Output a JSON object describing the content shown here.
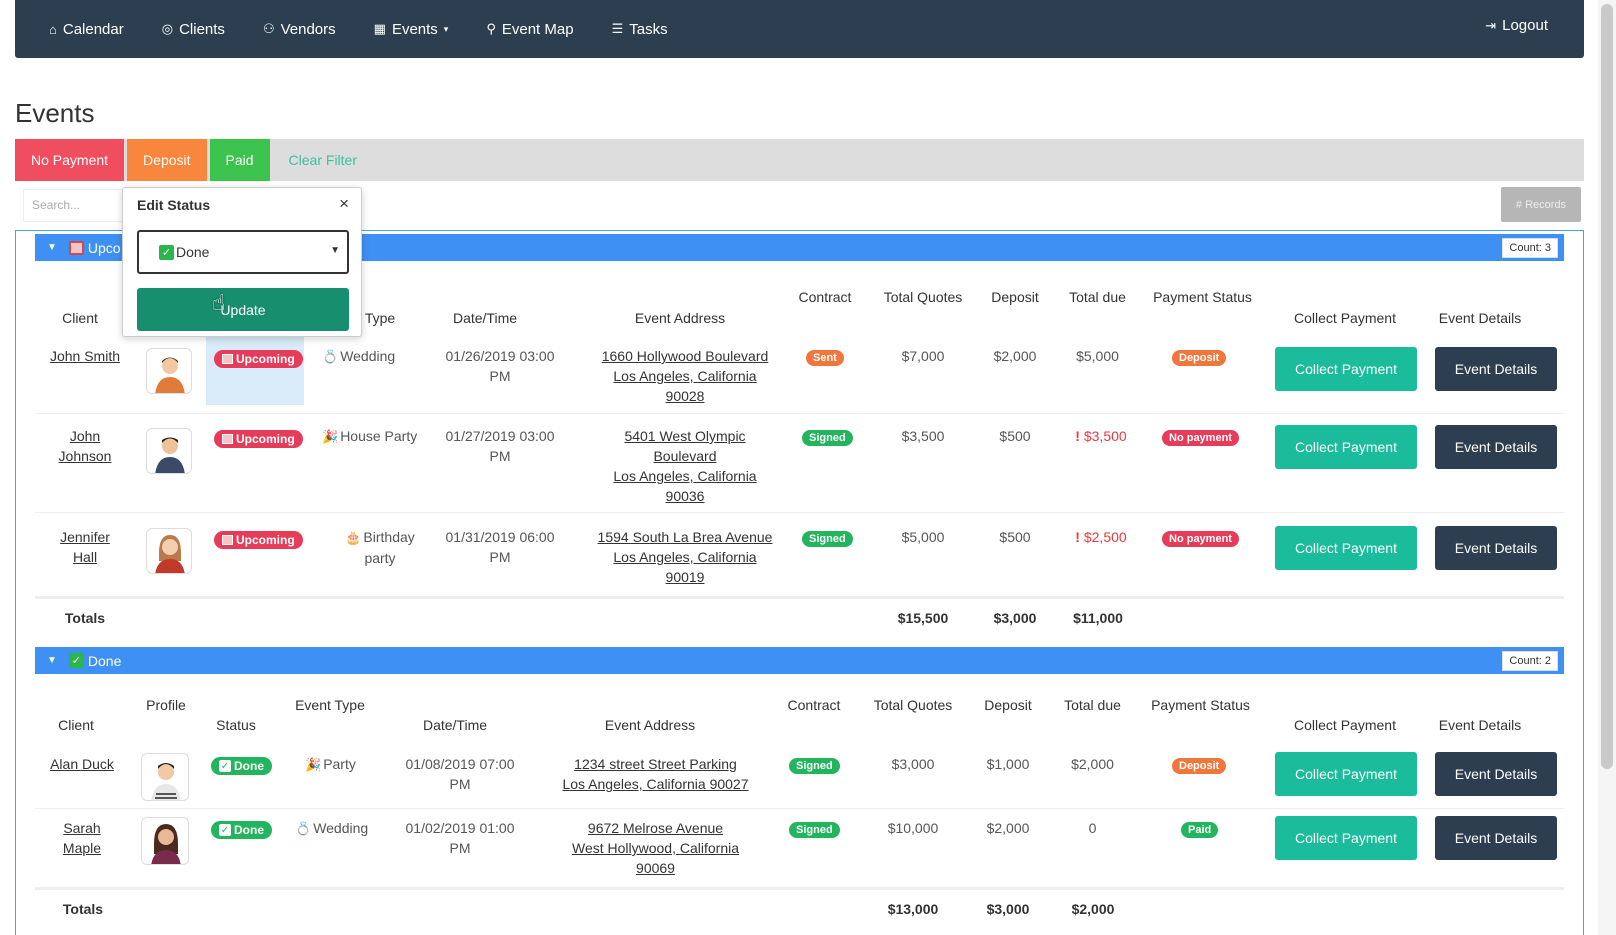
{
  "nav": {
    "items": [
      {
        "label": "Calendar",
        "icon": "home-icon"
      },
      {
        "label": "Clients",
        "icon": "user-circle-icon"
      },
      {
        "label": "Vendors",
        "icon": "users-icon"
      },
      {
        "label": "Events",
        "icon": "calendar-icon"
      },
      {
        "label": "Event Map",
        "icon": "map-pin-icon"
      },
      {
        "label": "Tasks",
        "icon": "list-icon"
      }
    ],
    "logout": "Logout"
  },
  "page": {
    "title": "Events"
  },
  "filters": {
    "no_payment": "No Payment",
    "deposit": "Deposit",
    "paid": "Paid",
    "clear": "Clear Filter"
  },
  "search": {
    "placeholder": "Search..."
  },
  "records_label": "# Records",
  "popover": {
    "title": "Edit Status",
    "close": "×",
    "selected": "Done",
    "update": "Update"
  },
  "upcoming": {
    "label": "Upco",
    "count": "Count: 3",
    "headers": {
      "client": "Client",
      "type": "Type",
      "datetime": "Date/Time",
      "address": "Event Address",
      "contract": "Contract",
      "total_quotes": "Total Quotes",
      "deposit": "Deposit",
      "total_due": "Total due",
      "payment_status": "Payment Status",
      "collect": "Collect Payment",
      "details": "Event Details"
    },
    "rows": [
      {
        "client1": "John Smith",
        "client2": "",
        "status": "Upcoming",
        "type": "Wedding",
        "dt1": "01/26/2019 03:00",
        "dt2": "PM",
        "addr1": "1660 Hollywood Boulevard",
        "addr2": "Los Angeles, California",
        "addr3": "90028",
        "addr4": "",
        "contract": "Sent",
        "quotes": "$7,000",
        "deposit": "$2,000",
        "due": "$5,000",
        "payment": "Deposit",
        "collect": "Collect Payment",
        "details": "Event Details"
      },
      {
        "client1": "John",
        "client2": "Johnson",
        "status": "Upcoming",
        "type": "House Party",
        "dt1": "01/27/2019 03:00",
        "dt2": "PM",
        "addr1": "5401 West Olympic",
        "addr2": "Boulevard",
        "addr3": "Los Angeles, California",
        "addr4": "90036",
        "contract": "Signed",
        "quotes": "$3,500",
        "deposit": "$500",
        "due": "$3,500",
        "payment": "No payment",
        "collect": "Collect Payment",
        "details": "Event Details"
      },
      {
        "client1": "Jennifer",
        "client2": "Hall",
        "status": "Upcoming",
        "type": "Birthday",
        "type2": "party",
        "dt1": "01/31/2019 06:00",
        "dt2": "PM",
        "addr1": "1594 South La Brea Avenue",
        "addr2": "Los Angeles, California",
        "addr3": "90019",
        "addr4": "",
        "contract": "Signed",
        "quotes": "$5,000",
        "deposit": "$500",
        "due": "$2,500",
        "payment": "No payment",
        "collect": "Collect Payment",
        "details": "Event Details"
      }
    ],
    "totals": {
      "label": "Totals",
      "quotes": "$15,500",
      "deposit": "$3,000",
      "due": "$11,000"
    }
  },
  "done": {
    "label": "Done",
    "count": "Count: 2",
    "headers": {
      "client": "Client",
      "profile": "Profile",
      "status": "Status",
      "type": "Event Type",
      "datetime": "Date/Time",
      "address": "Event Address",
      "contract": "Contract",
      "total_quotes": "Total Quotes",
      "deposit": "Deposit",
      "total_due": "Total due",
      "payment_status": "Payment Status",
      "collect": "Collect Payment",
      "details": "Event Details"
    },
    "rows": [
      {
        "client1": "Alan Duck",
        "client2": "",
        "status": "Done",
        "type": "Party",
        "dt1": "01/08/2019 07:00",
        "dt2": "PM",
        "addr1": "1234 street Street Parking",
        "addr2": "Los Angeles, California 90027",
        "addr3": "",
        "contract": "Signed",
        "quotes": "$3,000",
        "deposit": "$1,000",
        "due": "$2,000",
        "payment": "Deposit",
        "collect": "Collect Payment",
        "details": "Event Details"
      },
      {
        "client1": "Sarah",
        "client2": "Maple",
        "status": "Done",
        "type": "Wedding",
        "dt1": "01/02/2019 01:00",
        "dt2": "PM",
        "addr1": "9672 Melrose Avenue",
        "addr2": "West Hollywood, California",
        "addr3": "90069",
        "contract": "Signed",
        "quotes": "$10,000",
        "deposit": "$2,000",
        "due": "0",
        "payment": "Paid",
        "collect": "Collect Payment",
        "details": "Event Details"
      }
    ],
    "totals": {
      "label": "Totals",
      "quotes": "$13,000",
      "deposit": "$3,000",
      "due": "$2,000"
    }
  },
  "colors": {
    "nav": "#2c3e50",
    "group_bar": "#3f90f4",
    "collect": "#1abc9c",
    "details": "#2c3e50",
    "no_payment": "#f04e5e",
    "deposit": "#f8873d",
    "paid": "#3cc34d"
  }
}
